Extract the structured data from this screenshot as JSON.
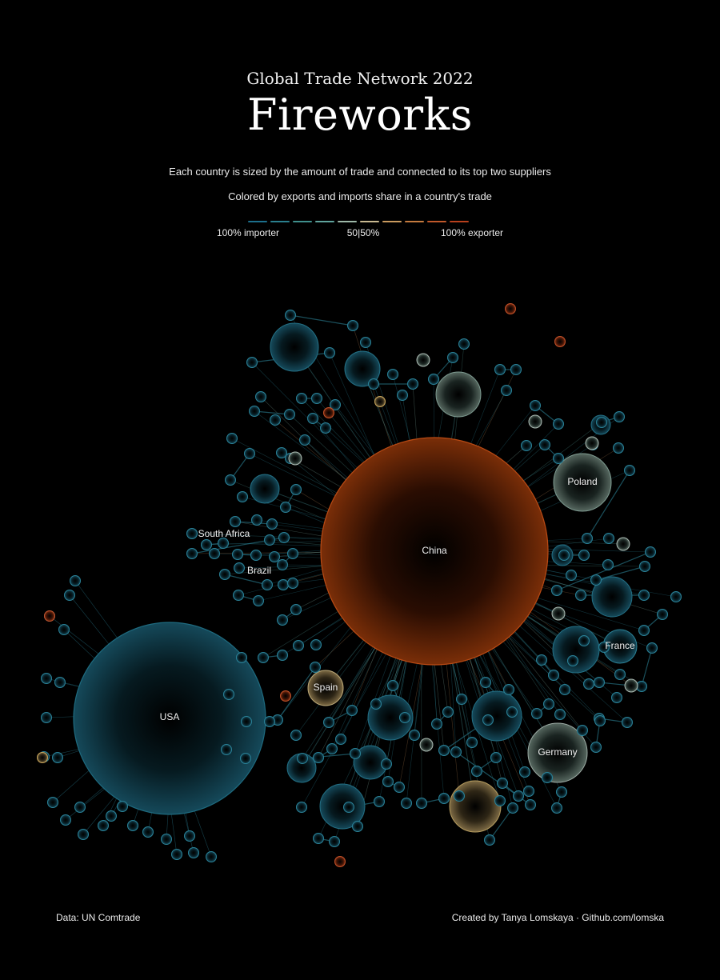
{
  "header": {
    "supertitle": "Global Trade Network 2022",
    "title": "Fireworks",
    "subtitle_1": "Each country is sized by the amount of trade and connected to its top two suppliers",
    "subtitle_2": "Colored by exports and imports share in a country's trade"
  },
  "legend": {
    "left_label": "100% importer",
    "mid_label": "50|50%",
    "right_label": "100% exporter",
    "colors": [
      "#1c6f8c",
      "#2a7f8e",
      "#3f8f8c",
      "#5fa39c",
      "#9db8a8",
      "#c8b890",
      "#c99a5e",
      "#c47a3e",
      "#c0582a",
      "#b8401c"
    ]
  },
  "labels": {
    "china": "China",
    "usa": "USA",
    "poland": "Poland",
    "france": "France",
    "germany": "Germany",
    "spain": "Spain",
    "south_africa": "South Africa",
    "brazil": "Brazil"
  },
  "colors": {
    "background": "#000000",
    "importer": "#1c7a92",
    "exporter": "#c0582a",
    "balanced": "#c8b890"
  },
  "footer": {
    "source": "Data: UN Comtrade",
    "credit": "Created by Tanya Lomskaya · Github.com/lomska"
  }
}
